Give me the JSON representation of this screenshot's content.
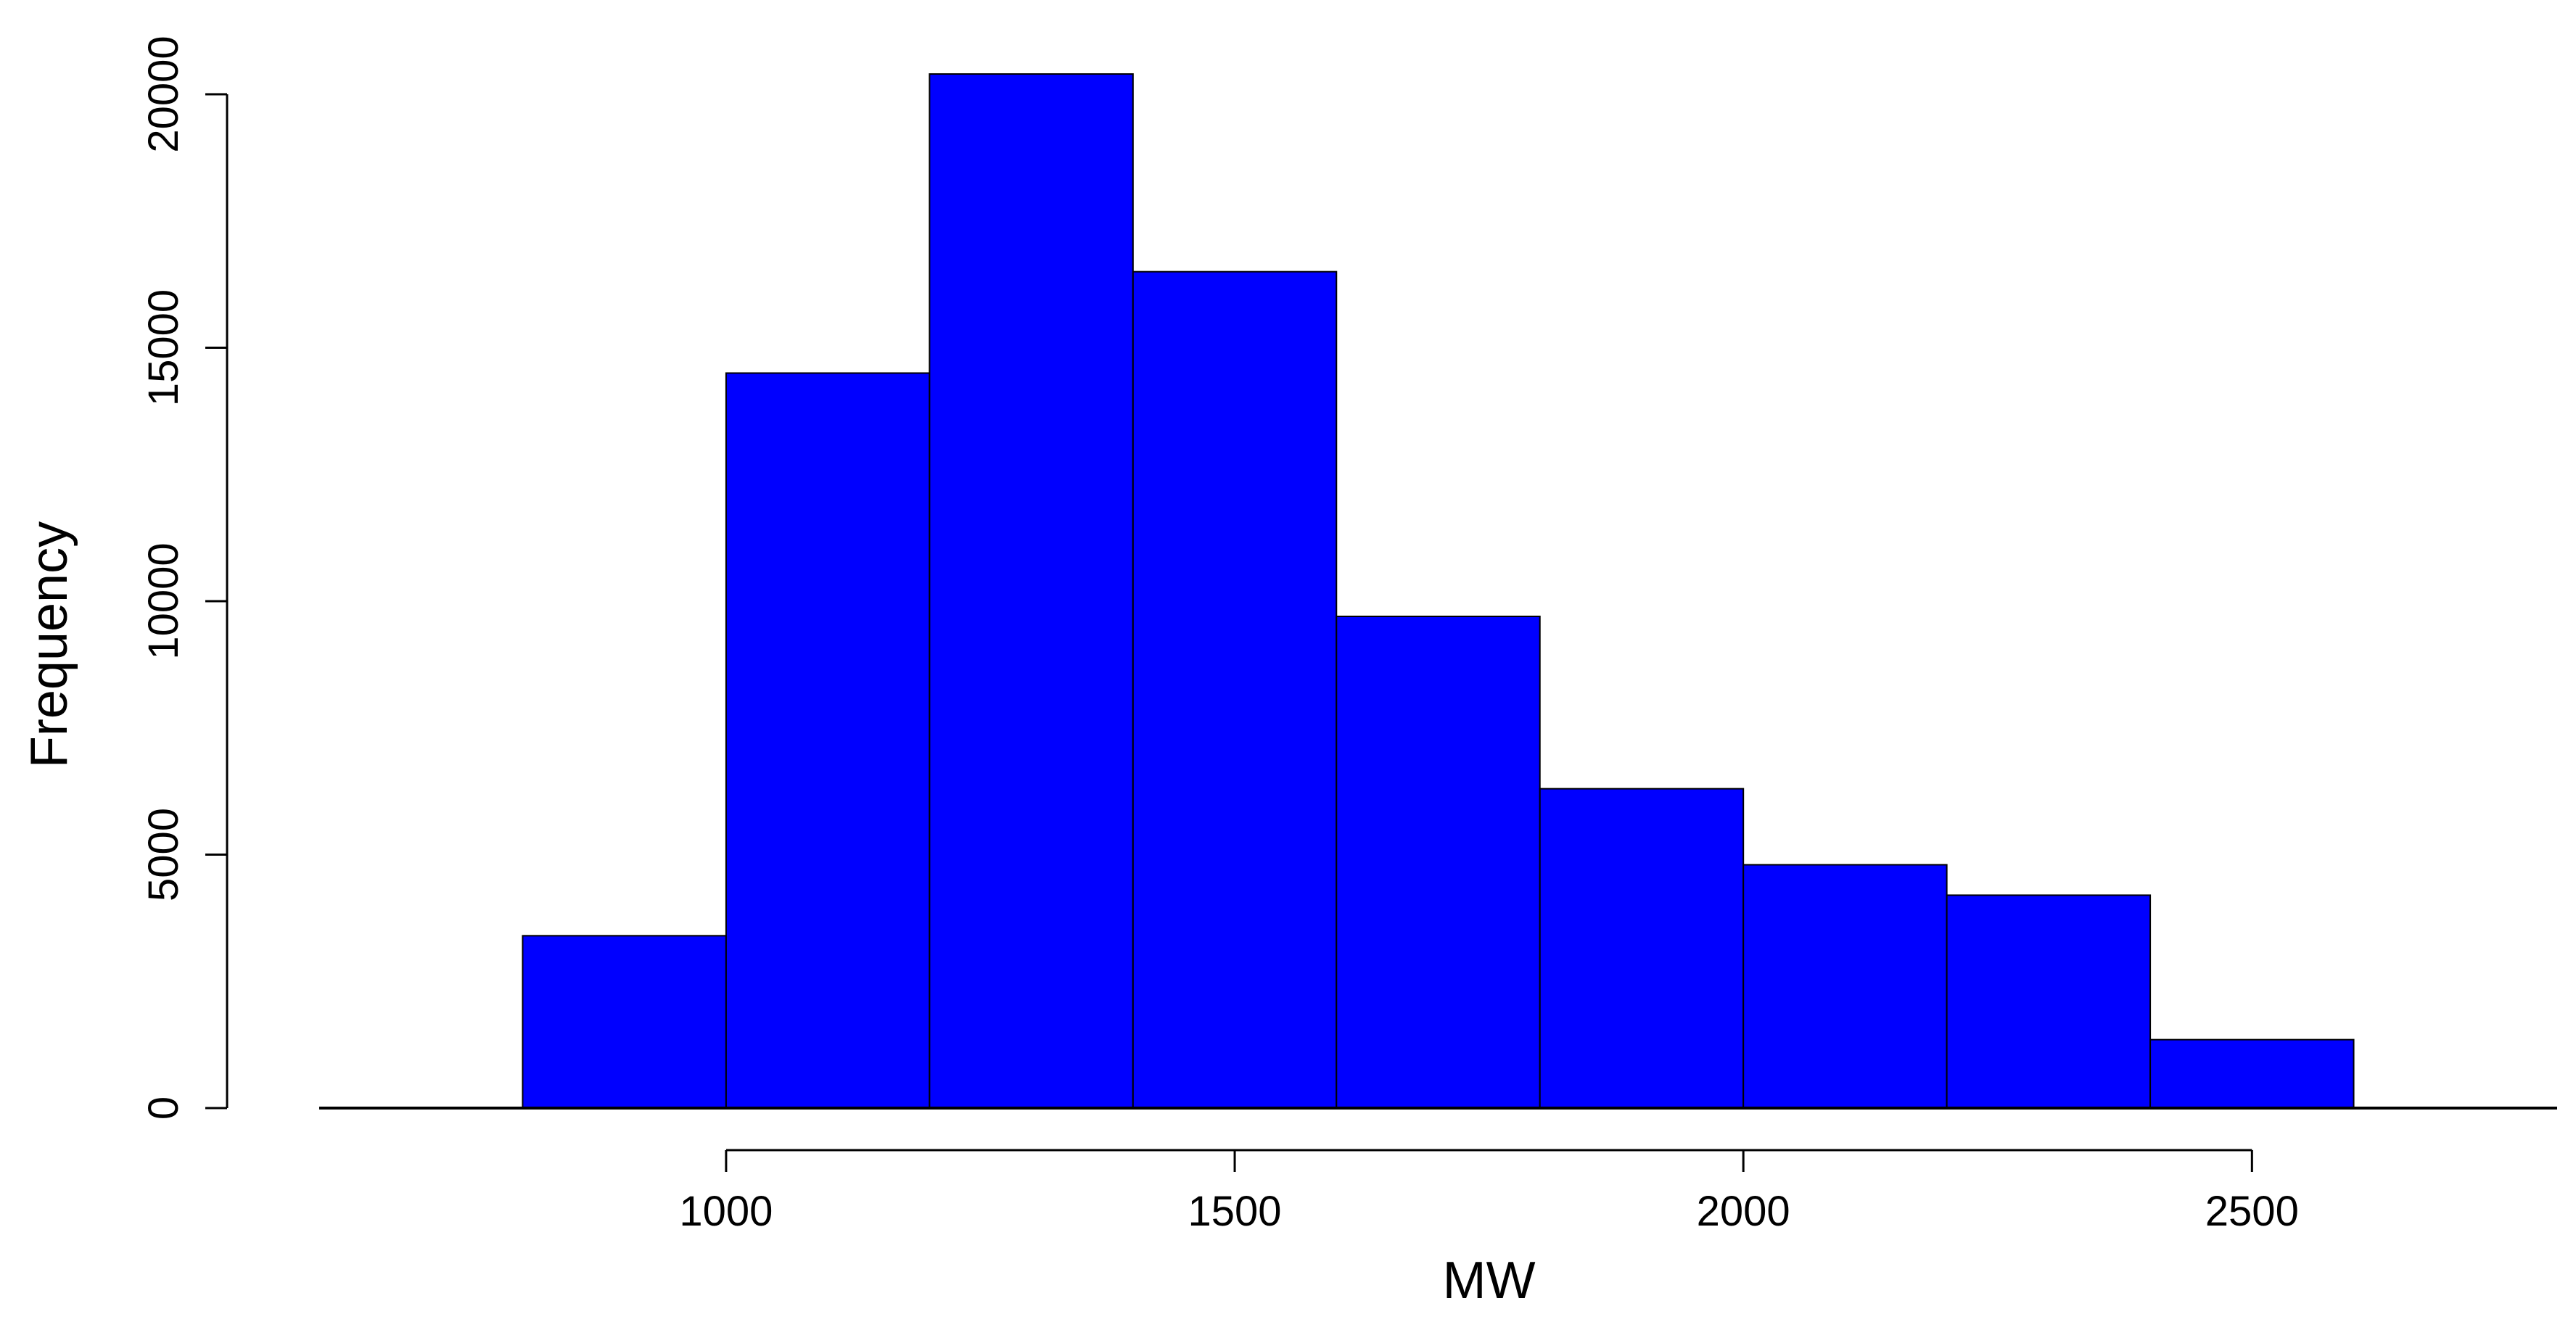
{
  "chart_data": {
    "type": "bar",
    "title": "",
    "xlabel": "MW",
    "ylabel": "Frequency",
    "bin_edges": [
      800,
      1000,
      1200,
      1400,
      1600,
      1800,
      2000,
      2200,
      2400,
      2600
    ],
    "values": [
      3400,
      14500,
      20400,
      16500,
      9700,
      6300,
      4800,
      4200,
      1350
    ],
    "xlim": [
      600,
      2800
    ],
    "ylim": [
      0,
      20000
    ],
    "x_ticks": [
      1000,
      1500,
      2000,
      2500
    ],
    "y_ticks": [
      0,
      5000,
      10000,
      15000,
      20000
    ],
    "x_tick_labels": [
      "1000",
      "1500",
      "2000",
      "2500"
    ],
    "y_tick_labels": [
      "0",
      "5000",
      "10000",
      "15000",
      "20000"
    ],
    "bar_color": "#0000ff",
    "bar_edge_color": "#000000",
    "grid": false,
    "legend": "none"
  }
}
